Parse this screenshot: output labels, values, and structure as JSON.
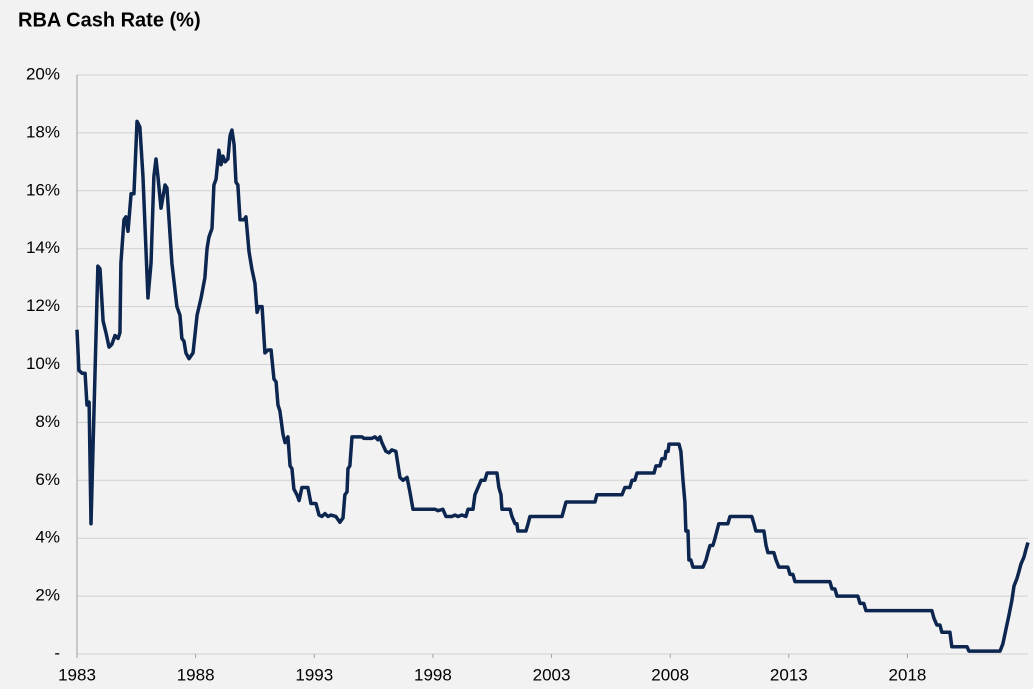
{
  "chart_data": {
    "type": "line",
    "title": "RBA Cash Rate (%)",
    "color": "#0c2650",
    "grid": true,
    "xlim": [
      1983,
      2023.08
    ],
    "xticks": [
      1983,
      1988,
      1993,
      1998,
      2003,
      2008,
      2013,
      2018
    ],
    "ylim": [
      0,
      20
    ],
    "yticks": [
      {
        "value": 0,
        "label": "-"
      },
      {
        "value": 2,
        "label": "2%"
      },
      {
        "value": 4,
        "label": "4%"
      },
      {
        "value": 6,
        "label": "6%"
      },
      {
        "value": 8,
        "label": "8%"
      },
      {
        "value": 10,
        "label": "10%"
      },
      {
        "value": 12,
        "label": "12%"
      },
      {
        "value": 14,
        "label": "14%"
      },
      {
        "value": 16,
        "label": "16%"
      },
      {
        "value": 18,
        "label": "18%"
      },
      {
        "value": 20,
        "label": "20%"
      }
    ],
    "x": [
      1983.0,
      1983.08,
      1983.21,
      1983.34,
      1983.42,
      1983.51,
      1983.59,
      1983.72,
      1983.88,
      1983.97,
      1984.1,
      1984.22,
      1984.35,
      1984.47,
      1984.6,
      1984.73,
      1984.81,
      1984.85,
      1984.98,
      1985.06,
      1985.15,
      1985.28,
      1985.4,
      1985.53,
      1985.65,
      1985.78,
      1985.99,
      1986.12,
      1986.24,
      1986.33,
      1986.41,
      1986.54,
      1986.71,
      1986.79,
      1987.0,
      1987.21,
      1987.34,
      1987.42,
      1987.51,
      1987.59,
      1987.72,
      1987.89,
      1988.06,
      1988.23,
      1988.39,
      1988.48,
      1988.56,
      1988.69,
      1988.77,
      1988.86,
      1988.98,
      1989.07,
      1989.15,
      1989.24,
      1989.36,
      1989.45,
      1989.53,
      1989.62,
      1989.7,
      1989.78,
      1989.87,
      1990.04,
      1990.12,
      1990.25,
      1990.37,
      1990.5,
      1990.59,
      1990.67,
      1990.8,
      1990.92,
      1991.05,
      1991.18,
      1991.3,
      1991.39,
      1991.47,
      1991.55,
      1991.68,
      1991.77,
      1991.89,
      1991.98,
      1992.06,
      1992.14,
      1992.27,
      1992.36,
      1992.48,
      1992.73,
      1992.86,
      1993.07,
      1993.2,
      1993.32,
      1993.45,
      1993.58,
      1993.7,
      1993.91,
      1994.08,
      1994.21,
      1994.29,
      1994.38,
      1994.42,
      1994.5,
      1994.59,
      1995.01,
      1995.09,
      1995.43,
      1995.56,
      1995.68,
      1995.77,
      1995.85,
      1996.02,
      1996.15,
      1996.27,
      1996.44,
      1996.61,
      1996.74,
      1996.91,
      1997.03,
      1997.16,
      1998.09,
      1998.21,
      1998.42,
      1998.55,
      1998.8,
      1998.93,
      1999.06,
      1999.22,
      1999.39,
      1999.48,
      1999.69,
      1999.77,
      1999.9,
      2000.03,
      2000.19,
      2000.28,
      2000.7,
      2000.78,
      2000.87,
      2000.91,
      2001.25,
      2001.33,
      2001.46,
      2001.54,
      2001.58,
      2001.92,
      2002.01,
      2002.09,
      2003.44,
      2003.61,
      2004.83,
      2004.91,
      2005.97,
      2006.09,
      2006.3,
      2006.39,
      2006.51,
      2006.6,
      2007.32,
      2007.4,
      2007.57,
      2007.65,
      2007.78,
      2007.82,
      2007.91,
      2007.95,
      2008.37,
      2008.45,
      2008.54,
      2008.62,
      2008.66,
      2008.75,
      2008.79,
      2008.87,
      2008.96,
      2009.38,
      2009.51,
      2009.59,
      2009.68,
      2009.8,
      2009.89,
      2009.97,
      2010.05,
      2010.43,
      2010.52,
      2011.44,
      2011.53,
      2011.61,
      2011.95,
      2012.04,
      2012.12,
      2012.37,
      2012.46,
      2012.58,
      2012.96,
      2013.05,
      2013.17,
      2013.26,
      2014.73,
      2014.82,
      2014.94,
      2015.03,
      2015.91,
      2016.0,
      2016.16,
      2016.25,
      2019.03,
      2019.11,
      2019.24,
      2019.37,
      2019.45,
      2019.79,
      2019.87,
      2020.51,
      2020.59,
      2021.9,
      2022.02,
      2022.15,
      2022.28,
      2022.4,
      2022.49,
      2022.61,
      2022.7,
      2022.78,
      2022.91,
      2022.99,
      2023.08
    ],
    "values": [
      11.2,
      9.8,
      9.7,
      9.7,
      8.6,
      8.7,
      4.5,
      8.5,
      13.4,
      13.3,
      11.5,
      11.1,
      10.6,
      10.7,
      11.0,
      10.9,
      11.1,
      13.5,
      15.0,
      15.1,
      14.6,
      15.9,
      15.9,
      18.4,
      18.2,
      16.5,
      12.3,
      13.5,
      16.5,
      17.1,
      16.5,
      15.4,
      16.2,
      16.1,
      13.5,
      12.0,
      11.7,
      10.9,
      10.8,
      10.4,
      10.2,
      10.4,
      11.7,
      12.3,
      13.0,
      14.0,
      14.4,
      14.7,
      16.2,
      16.4,
      17.4,
      16.9,
      17.2,
      17.0,
      17.1,
      17.9,
      18.1,
      17.6,
      16.3,
      16.2,
      15.0,
      15.0,
      15.1,
      13.9,
      13.3,
      12.8,
      11.8,
      12.0,
      12.0,
      10.4,
      10.5,
      10.5,
      9.5,
      9.4,
      8.6,
      8.4,
      7.6,
      7.3,
      7.5,
      6.5,
      6.4,
      5.7,
      5.5,
      5.3,
      5.75,
      5.75,
      5.2,
      5.2,
      4.8,
      4.75,
      4.85,
      4.75,
      4.8,
      4.75,
      4.55,
      4.7,
      5.5,
      5.6,
      6.4,
      6.5,
      7.5,
      7.5,
      7.45,
      7.45,
      7.5,
      7.4,
      7.5,
      7.3,
      7.0,
      6.95,
      7.05,
      7.0,
      6.1,
      6.0,
      6.1,
      5.6,
      5.0,
      5.0,
      4.95,
      5.0,
      4.75,
      4.75,
      4.8,
      4.75,
      4.8,
      4.75,
      5.0,
      5.0,
      5.5,
      5.75,
      6.0,
      6.0,
      6.25,
      6.25,
      5.75,
      5.5,
      5.0,
      5.0,
      4.75,
      4.5,
      4.5,
      4.25,
      4.25,
      4.5,
      4.75,
      4.75,
      5.25,
      5.25,
      5.5,
      5.5,
      5.75,
      5.75,
      6.0,
      6.0,
      6.25,
      6.25,
      6.5,
      6.5,
      6.75,
      6.75,
      7.0,
      7.0,
      7.25,
      7.25,
      7.0,
      6.0,
      5.25,
      4.25,
      4.25,
      3.25,
      3.25,
      3.0,
      3.0,
      3.25,
      3.5,
      3.75,
      3.75,
      4.0,
      4.25,
      4.5,
      4.5,
      4.75,
      4.75,
      4.5,
      4.25,
      4.25,
      3.75,
      3.5,
      3.5,
      3.25,
      3.0,
      3.0,
      2.75,
      2.75,
      2.5,
      2.5,
      2.25,
      2.25,
      2.0,
      2.0,
      1.75,
      1.75,
      1.5,
      1.5,
      1.25,
      1.0,
      1.0,
      0.75,
      0.75,
      0.25,
      0.25,
      0.1,
      0.1,
      0.35,
      0.85,
      1.35,
      1.85,
      2.35,
      2.6,
      2.85,
      3.1,
      3.35,
      3.6,
      3.85
    ]
  }
}
